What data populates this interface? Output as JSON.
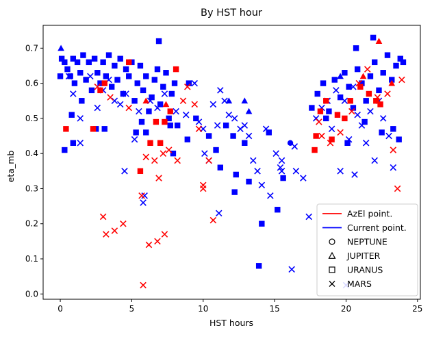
{
  "chart_data": {
    "type": "scatter",
    "title": "By HST hour",
    "xlabel": "HST hours",
    "ylabel": "eta_mb",
    "xlim": [
      -1.2,
      25.2
    ],
    "ylim": [
      -0.015,
      0.765
    ],
    "xticks": [
      0,
      5,
      10,
      15,
      20,
      25
    ],
    "yticks": [
      0.0,
      0.1,
      0.2,
      0.3,
      0.4,
      0.5,
      0.6,
      0.7
    ],
    "ytick_labels": [
      "0.0",
      "0.1",
      "0.2",
      "0.3",
      "0.4",
      "0.5",
      "0.6",
      "0.7"
    ],
    "grid": false,
    "legend_position": "lower-right",
    "legend": [
      {
        "label": "AzEl point.",
        "kind": "line",
        "color": "#ff0000"
      },
      {
        "label": "Current point.",
        "kind": "line",
        "color": "#0000ff"
      },
      {
        "label": "NEPTUNE",
        "kind": "marker",
        "marker": "circle"
      },
      {
        "label": "JUPITER",
        "kind": "marker",
        "marker": "triangle"
      },
      {
        "label": "URANUS",
        "kind": "marker",
        "marker": "square"
      },
      {
        "label": "MARS",
        "kind": "marker",
        "marker": "x"
      }
    ],
    "colors": {
      "azel": "#ff0000",
      "current": "#0000ff"
    },
    "series": [
      {
        "pointing": "Current point.",
        "color": "#0000ff",
        "target": "URANUS",
        "marker": "square",
        "points": [
          [
            0.0,
            0.62
          ],
          [
            0.1,
            0.67
          ],
          [
            0.3,
            0.66
          ],
          [
            0.5,
            0.64
          ],
          [
            0.7,
            0.62
          ],
          [
            0.9,
            0.67
          ],
          [
            1.0,
            0.6
          ],
          [
            1.2,
            0.66
          ],
          [
            1.4,
            0.63
          ],
          [
            1.6,
            0.68
          ],
          [
            1.8,
            0.61
          ],
          [
            2.0,
            0.66
          ],
          [
            2.2,
            0.58
          ],
          [
            2.4,
            0.67
          ],
          [
            2.6,
            0.63
          ],
          [
            2.8,
            0.6
          ],
          [
            3.0,
            0.66
          ],
          [
            3.2,
            0.62
          ],
          [
            3.4,
            0.68
          ],
          [
            3.6,
            0.59
          ],
          [
            3.8,
            0.65
          ],
          [
            4.0,
            0.61
          ],
          [
            4.2,
            0.67
          ],
          [
            4.4,
            0.57
          ],
          [
            4.6,
            0.64
          ],
          [
            4.8,
            0.62
          ],
          [
            5.0,
            0.66
          ],
          [
            5.2,
            0.55
          ],
          [
            5.4,
            0.6
          ],
          [
            5.6,
            0.65
          ],
          [
            5.8,
            0.58
          ],
          [
            6.0,
            0.62
          ],
          [
            6.2,
            0.52
          ],
          [
            6.4,
            0.56
          ],
          [
            6.6,
            0.61
          ],
          [
            6.8,
            0.64
          ],
          [
            7.0,
            0.54
          ],
          [
            7.2,
            0.59
          ],
          [
            7.4,
            0.63
          ],
          [
            7.6,
            0.5
          ],
          [
            7.8,
            0.57
          ],
          [
            8.0,
            0.6
          ],
          [
            0.8,
            0.51
          ],
          [
            1.5,
            0.55
          ],
          [
            2.5,
            0.47
          ],
          [
            3.1,
            0.47
          ],
          [
            0.3,
            0.41
          ],
          [
            0.9,
            0.43
          ],
          [
            5.3,
            0.46
          ],
          [
            5.7,
            0.49
          ],
          [
            6.0,
            0.46
          ],
          [
            6.9,
            0.72
          ],
          [
            7.7,
            0.48
          ],
          [
            8.2,
            0.48
          ],
          [
            8.9,
            0.44
          ],
          [
            7.9,
            0.4
          ],
          [
            9.0,
            0.6
          ],
          [
            9.5,
            0.5
          ],
          [
            10.4,
            0.45
          ],
          [
            10.9,
            0.41
          ],
          [
            11.2,
            0.36
          ],
          [
            11.6,
            0.48
          ],
          [
            12.1,
            0.45
          ],
          [
            12.3,
            0.34
          ],
          [
            12.9,
            0.43
          ],
          [
            13.2,
            0.32
          ],
          [
            12.2,
            0.29
          ],
          [
            14.6,
            0.46
          ],
          [
            15.6,
            0.33
          ],
          [
            14.1,
            0.2
          ],
          [
            15.2,
            0.24
          ],
          [
            13.9,
            0.08
          ],
          [
            17.6,
            0.53
          ],
          [
            18.0,
            0.57
          ],
          [
            18.4,
            0.6
          ],
          [
            18.8,
            0.52
          ],
          [
            19.2,
            0.61
          ],
          [
            19.6,
            0.56
          ],
          [
            19.9,
            0.63
          ],
          [
            20.2,
            0.59
          ],
          [
            20.5,
            0.53
          ],
          [
            20.8,
            0.64
          ],
          [
            21.1,
            0.6
          ],
          [
            21.4,
            0.55
          ],
          [
            21.7,
            0.62
          ],
          [
            22.0,
            0.66
          ],
          [
            22.3,
            0.58
          ],
          [
            22.6,
            0.63
          ],
          [
            22.9,
            0.68
          ],
          [
            23.2,
            0.61
          ],
          [
            23.5,
            0.65
          ],
          [
            23.8,
            0.67
          ],
          [
            24.0,
            0.66
          ],
          [
            20.7,
            0.7
          ],
          [
            21.9,
            0.73
          ],
          [
            22.5,
            0.46
          ],
          [
            23.3,
            0.47
          ],
          [
            23.7,
            0.44
          ],
          [
            21.3,
            0.49
          ],
          [
            20.1,
            0.43
          ],
          [
            18.6,
            0.5
          ]
        ]
      },
      {
        "pointing": "Current point.",
        "color": "#0000ff",
        "target": "MARS",
        "marker": "x",
        "points": [
          [
            0.6,
            0.62
          ],
          [
            0.9,
            0.57
          ],
          [
            1.4,
            0.43
          ],
          [
            1.4,
            0.5
          ],
          [
            2.1,
            0.62
          ],
          [
            2.6,
            0.53
          ],
          [
            3.0,
            0.58
          ],
          [
            3.4,
            0.61
          ],
          [
            3.8,
            0.55
          ],
          [
            4.2,
            0.54
          ],
          [
            4.6,
            0.57
          ],
          [
            4.5,
            0.35
          ],
          [
            5.2,
            0.44
          ],
          [
            5.5,
            0.52
          ],
          [
            5.8,
            0.26
          ],
          [
            5.9,
            0.28
          ],
          [
            6.3,
            0.55
          ],
          [
            6.8,
            0.53
          ],
          [
            7.3,
            0.57
          ],
          [
            8.1,
            0.52
          ],
          [
            8.8,
            0.51
          ],
          [
            9.4,
            0.6
          ],
          [
            9.7,
            0.49
          ],
          [
            10.0,
            0.47
          ],
          [
            10.1,
            0.4
          ],
          [
            10.4,
            0.38
          ],
          [
            10.7,
            0.54
          ],
          [
            11.0,
            0.48
          ],
          [
            11.2,
            0.58
          ],
          [
            11.5,
            0.55
          ],
          [
            11.8,
            0.51
          ],
          [
            12.2,
            0.5
          ],
          [
            12.6,
            0.47
          ],
          [
            12.9,
            0.48
          ],
          [
            13.2,
            0.45
          ],
          [
            13.5,
            0.38
          ],
          [
            13.8,
            0.35
          ],
          [
            14.1,
            0.31
          ],
          [
            14.4,
            0.47
          ],
          [
            14.7,
            0.28
          ],
          [
            15.1,
            0.4
          ],
          [
            15.4,
            0.36
          ],
          [
            15.5,
            0.38
          ],
          [
            15.5,
            0.35
          ],
          [
            16.2,
            0.07
          ],
          [
            16.4,
            0.42
          ],
          [
            16.5,
            0.35
          ],
          [
            17.0,
            0.33
          ],
          [
            17.4,
            0.22
          ],
          [
            17.9,
            0.5
          ],
          [
            18.3,
            0.53
          ],
          [
            18.7,
            0.55
          ],
          [
            19.0,
            0.47
          ],
          [
            19.3,
            0.58
          ],
          [
            19.6,
            0.35
          ],
          [
            19.9,
            0.55
          ],
          [
            20.2,
            0.44
          ],
          [
            20.5,
            0.59
          ],
          [
            20.8,
            0.51
          ],
          [
            21.1,
            0.48
          ],
          [
            21.4,
            0.43
          ],
          [
            21.7,
            0.52
          ],
          [
            22.0,
            0.38
          ],
          [
            22.3,
            0.55
          ],
          [
            22.6,
            0.5
          ],
          [
            23.0,
            0.45
          ],
          [
            23.3,
            0.36
          ],
          [
            20.0,
            0.025
          ],
          [
            20.6,
            0.34
          ],
          [
            11.1,
            0.23
          ]
        ]
      },
      {
        "pointing": "Current point.",
        "color": "#0000ff",
        "target": "JUPITER",
        "marker": "triangle",
        "points": [
          [
            0.05,
            0.7
          ],
          [
            12.9,
            0.55
          ],
          [
            13.2,
            0.52
          ],
          [
            19.6,
            0.62
          ],
          [
            11.8,
            0.55
          ]
        ]
      },
      {
        "pointing": "AzEl point.",
        "color": "#ff0000",
        "target": "URANUS",
        "marker": "square",
        "points": [
          [
            0.4,
            0.47
          ],
          [
            2.3,
            0.47
          ],
          [
            3.1,
            0.6
          ],
          [
            5.6,
            0.35
          ],
          [
            6.3,
            0.43
          ],
          [
            6.7,
            0.49
          ],
          [
            7.0,
            0.43
          ],
          [
            7.3,
            0.49
          ],
          [
            7.7,
            0.52
          ],
          [
            8.1,
            0.64
          ],
          [
            2.8,
            0.58
          ],
          [
            4.8,
            0.66
          ],
          [
            17.8,
            0.41
          ],
          [
            18.2,
            0.52
          ],
          [
            18.6,
            0.55
          ],
          [
            19.0,
            0.44
          ],
          [
            19.4,
            0.51
          ],
          [
            19.9,
            0.5
          ],
          [
            20.3,
            0.55
          ],
          [
            21.0,
            0.59
          ],
          [
            21.6,
            0.57
          ],
          [
            22.1,
            0.55
          ],
          [
            22.4,
            0.54
          ],
          [
            17.9,
            0.45
          ]
        ]
      },
      {
        "pointing": "AzEl point.",
        "color": "#ff0000",
        "target": "MARS",
        "marker": "x",
        "points": [
          [
            3.0,
            0.22
          ],
          [
            3.2,
            0.17
          ],
          [
            3.8,
            0.18
          ],
          [
            4.4,
            0.2
          ],
          [
            5.8,
            0.025
          ],
          [
            6.2,
            0.14
          ],
          [
            6.8,
            0.15
          ],
          [
            7.3,
            0.17
          ],
          [
            6.9,
            0.33
          ],
          [
            5.7,
            0.28
          ],
          [
            6.0,
            0.39
          ],
          [
            6.6,
            0.38
          ],
          [
            7.2,
            0.4
          ],
          [
            7.6,
            0.41
          ],
          [
            8.2,
            0.38
          ],
          [
            8.6,
            0.55
          ],
          [
            8.9,
            0.59
          ],
          [
            9.4,
            0.54
          ],
          [
            9.7,
            0.47
          ],
          [
            10.0,
            0.3
          ],
          [
            10.0,
            0.31
          ],
          [
            10.4,
            0.38
          ],
          [
            10.7,
            0.21
          ],
          [
            2.6,
            0.59
          ],
          [
            3.5,
            0.56
          ],
          [
            4.8,
            0.53
          ],
          [
            18.3,
            0.45
          ],
          [
            18.9,
            0.43
          ],
          [
            19.6,
            0.46
          ],
          [
            20.4,
            0.52
          ],
          [
            20.9,
            0.6
          ],
          [
            21.5,
            0.64
          ],
          [
            22.2,
            0.56
          ],
          [
            22.9,
            0.57
          ],
          [
            23.3,
            0.41
          ],
          [
            23.6,
            0.3
          ],
          [
            23.9,
            0.61
          ],
          [
            18.1,
            0.49
          ]
        ]
      },
      {
        "pointing": "AzEl point.",
        "color": "#ff0000",
        "target": "JUPITER",
        "marker": "triangle",
        "points": [
          [
            22.3,
            0.72
          ],
          [
            23.2,
            0.6
          ],
          [
            21.2,
            0.62
          ],
          [
            6.0,
            0.55
          ],
          [
            7.4,
            0.54
          ]
        ]
      },
      {
        "pointing": "Current point.",
        "color": "#0000ff",
        "target": "NEPTUNE",
        "marker": "circle",
        "points": [
          [
            16.1,
            0.43
          ]
        ]
      }
    ]
  }
}
